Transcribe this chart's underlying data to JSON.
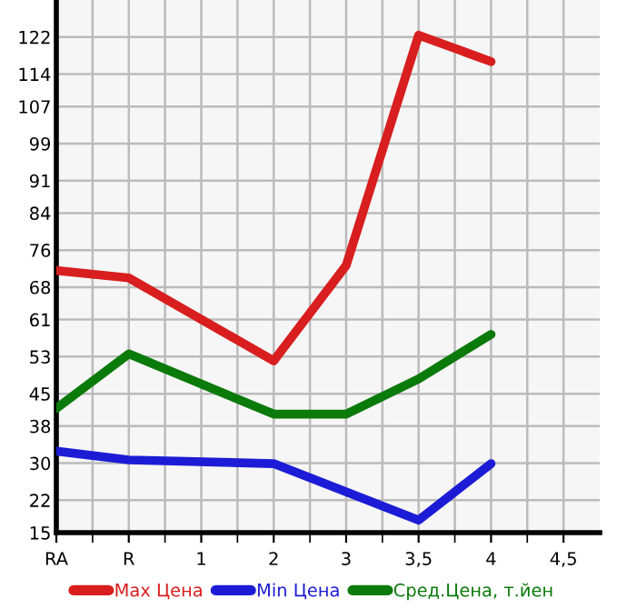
{
  "chart_data": {
    "type": "line",
    "categories": [
      "RA",
      "R",
      "1",
      "2",
      "3",
      "3,5",
      "4",
      "4,5"
    ],
    "ylim": [
      15,
      130
    ],
    "yticks": [
      15,
      22,
      30,
      38,
      45,
      53,
      61,
      68,
      76,
      84,
      91,
      99,
      107,
      114,
      122
    ],
    "grid": true,
    "legend": "bottom",
    "marker": "none",
    "line_style": "solid",
    "series": [
      {
        "name": "Max Цена",
        "color": "#d81e1e",
        "values": [
          71.6,
          70.0,
          null,
          52.1,
          72.7,
          122.4,
          116.7,
          null
        ]
      },
      {
        "name": "Min Цена",
        "color": "#1c1cd6",
        "values": [
          32.6,
          30.7,
          null,
          29.9,
          null,
          17.7,
          29.9,
          null
        ]
      },
      {
        "name": "Сред.Цена, т.йен",
        "color": "#0a7a0a",
        "values": [
          41.8,
          53.6,
          null,
          40.6,
          40.6,
          48.2,
          57.8,
          null
        ]
      }
    ]
  }
}
